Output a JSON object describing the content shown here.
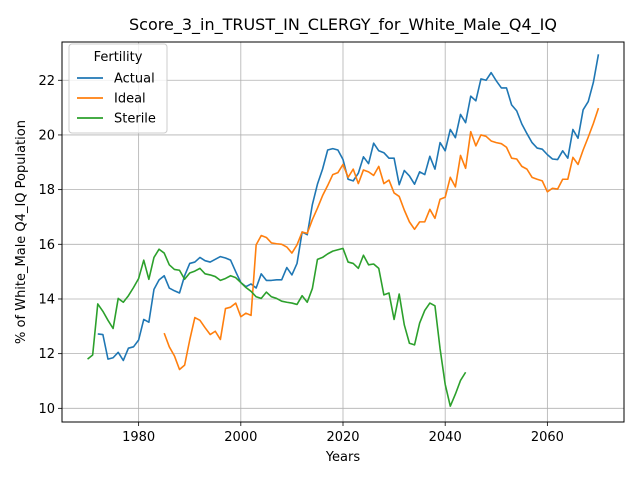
{
  "chart_data": {
    "type": "line",
    "title": "Score_3_in_TRUST_IN_CLERGY_for_White_Male_Q4_IQ",
    "xlabel": "Years",
    "ylabel": "% of White_Male Q4_IQ Population",
    "xlim": [
      1965,
      2075
    ],
    "ylim": [
      9.5,
      23.4
    ],
    "xticks": [
      1980,
      2000,
      2020,
      2040,
      2060
    ],
    "yticks": [
      10,
      12,
      14,
      16,
      18,
      20,
      22
    ],
    "grid": true,
    "legend": {
      "title": "Fertility",
      "placement": "top-left",
      "entries": [
        "Actual",
        "Ideal",
        "Sterile"
      ]
    },
    "series": [
      {
        "name": "Actual",
        "color": "#1f77b4",
        "points": [
          [
            1972,
            12.72
          ],
          [
            1973,
            12.7
          ],
          [
            1974,
            11.8
          ],
          [
            1975,
            11.85
          ],
          [
            1976,
            12.05
          ],
          [
            1977,
            11.75
          ],
          [
            1978,
            12.2
          ],
          [
            1979,
            12.25
          ],
          [
            1980,
            12.5
          ],
          [
            1981,
            13.25
          ],
          [
            1982,
            13.15
          ],
          [
            1983,
            14.35
          ],
          [
            1984,
            14.7
          ],
          [
            1985,
            14.85
          ],
          [
            1986,
            14.4
          ],
          [
            1987,
            14.3
          ],
          [
            1988,
            14.22
          ],
          [
            1989,
            14.85
          ],
          [
            1990,
            15.3
          ],
          [
            1991,
            15.35
          ],
          [
            1992,
            15.52
          ],
          [
            1993,
            15.4
          ],
          [
            1994,
            15.35
          ],
          [
            1995,
            15.45
          ],
          [
            1996,
            15.55
          ],
          [
            1997,
            15.5
          ],
          [
            1998,
            15.42
          ],
          [
            1999,
            15.0
          ],
          [
            2000,
            14.6
          ],
          [
            2001,
            14.45
          ],
          [
            2002,
            14.55
          ],
          [
            2003,
            14.4
          ],
          [
            2004,
            14.92
          ],
          [
            2005,
            14.68
          ],
          [
            2006,
            14.68
          ],
          [
            2007,
            14.7
          ],
          [
            2008,
            14.7
          ],
          [
            2009,
            15.15
          ],
          [
            2010,
            14.88
          ],
          [
            2011,
            15.3
          ],
          [
            2012,
            16.45
          ],
          [
            2013,
            16.35
          ],
          [
            2014,
            17.45
          ],
          [
            2015,
            18.2
          ],
          [
            2016,
            18.75
          ],
          [
            2017,
            19.45
          ],
          [
            2018,
            19.5
          ],
          [
            2019,
            19.45
          ],
          [
            2020,
            19.1
          ],
          [
            2021,
            18.38
          ],
          [
            2022,
            18.32
          ],
          [
            2023,
            18.6
          ],
          [
            2024,
            19.2
          ],
          [
            2025,
            18.95
          ],
          [
            2026,
            19.7
          ],
          [
            2027,
            19.42
          ],
          [
            2028,
            19.35
          ],
          [
            2029,
            19.15
          ],
          [
            2030,
            19.15
          ],
          [
            2031,
            18.18
          ],
          [
            2032,
            18.7
          ],
          [
            2033,
            18.5
          ],
          [
            2034,
            18.2
          ],
          [
            2035,
            18.65
          ],
          [
            2036,
            18.55
          ],
          [
            2037,
            19.22
          ],
          [
            2038,
            18.75
          ],
          [
            2039,
            19.72
          ],
          [
            2040,
            19.42
          ],
          [
            2041,
            20.2
          ],
          [
            2042,
            19.9
          ],
          [
            2043,
            20.75
          ],
          [
            2044,
            20.45
          ],
          [
            2045,
            21.42
          ],
          [
            2046,
            21.25
          ],
          [
            2047,
            22.05
          ],
          [
            2048,
            22.0
          ],
          [
            2049,
            22.28
          ],
          [
            2050,
            21.98
          ],
          [
            2051,
            21.72
          ],
          [
            2052,
            21.72
          ],
          [
            2053,
            21.1
          ],
          [
            2054,
            20.88
          ],
          [
            2055,
            20.4
          ],
          [
            2056,
            20.05
          ],
          [
            2057,
            19.72
          ],
          [
            2058,
            19.52
          ],
          [
            2059,
            19.48
          ],
          [
            2060,
            19.28
          ],
          [
            2061,
            19.12
          ],
          [
            2062,
            19.1
          ],
          [
            2063,
            19.42
          ],
          [
            2064,
            19.15
          ],
          [
            2065,
            20.2
          ],
          [
            2066,
            19.88
          ],
          [
            2067,
            20.92
          ],
          [
            2068,
            21.22
          ],
          [
            2069,
            21.92
          ],
          [
            2070,
            22.95
          ]
        ]
      },
      {
        "name": "Ideal",
        "color": "#ff7f0e",
        "points": [
          [
            1985,
            12.75
          ],
          [
            1986,
            12.25
          ],
          [
            1987,
            11.92
          ],
          [
            1988,
            11.42
          ],
          [
            1989,
            11.58
          ],
          [
            1990,
            12.5
          ],
          [
            1991,
            13.32
          ],
          [
            1992,
            13.22
          ],
          [
            1993,
            12.95
          ],
          [
            1994,
            12.7
          ],
          [
            1995,
            12.82
          ],
          [
            1996,
            12.52
          ],
          [
            1997,
            13.65
          ],
          [
            1998,
            13.7
          ],
          [
            1999,
            13.85
          ],
          [
            2000,
            13.35
          ],
          [
            2001,
            13.48
          ],
          [
            2002,
            13.4
          ],
          [
            2003,
            15.98
          ],
          [
            2004,
            16.32
          ],
          [
            2005,
            16.25
          ],
          [
            2006,
            16.05
          ],
          [
            2007,
            16.02
          ],
          [
            2008,
            16.0
          ],
          [
            2009,
            15.9
          ],
          [
            2010,
            15.68
          ],
          [
            2011,
            15.98
          ],
          [
            2012,
            16.45
          ],
          [
            2013,
            16.4
          ],
          [
            2014,
            16.9
          ],
          [
            2015,
            17.32
          ],
          [
            2016,
            17.78
          ],
          [
            2017,
            18.15
          ],
          [
            2018,
            18.55
          ],
          [
            2019,
            18.62
          ],
          [
            2020,
            18.92
          ],
          [
            2021,
            18.45
          ],
          [
            2022,
            18.75
          ],
          [
            2023,
            18.22
          ],
          [
            2024,
            18.72
          ],
          [
            2025,
            18.65
          ],
          [
            2026,
            18.52
          ],
          [
            2027,
            18.85
          ],
          [
            2028,
            18.22
          ],
          [
            2029,
            18.35
          ],
          [
            2030,
            17.88
          ],
          [
            2031,
            17.75
          ],
          [
            2032,
            17.25
          ],
          [
            2033,
            16.82
          ],
          [
            2034,
            16.55
          ],
          [
            2035,
            16.82
          ],
          [
            2036,
            16.82
          ],
          [
            2037,
            17.28
          ],
          [
            2038,
            16.95
          ],
          [
            2039,
            17.65
          ],
          [
            2040,
            17.72
          ],
          [
            2041,
            18.45
          ],
          [
            2042,
            18.1
          ],
          [
            2043,
            19.25
          ],
          [
            2044,
            18.78
          ],
          [
            2045,
            20.12
          ],
          [
            2046,
            19.6
          ],
          [
            2047,
            20.0
          ],
          [
            2048,
            19.95
          ],
          [
            2049,
            19.78
          ],
          [
            2050,
            19.72
          ],
          [
            2051,
            19.68
          ],
          [
            2052,
            19.55
          ],
          [
            2053,
            19.15
          ],
          [
            2054,
            19.12
          ],
          [
            2055,
            18.85
          ],
          [
            2056,
            18.75
          ],
          [
            2057,
            18.45
          ],
          [
            2058,
            18.38
          ],
          [
            2059,
            18.32
          ],
          [
            2060,
            17.92
          ],
          [
            2061,
            18.05
          ],
          [
            2062,
            18.02
          ],
          [
            2063,
            18.38
          ],
          [
            2064,
            18.38
          ],
          [
            2065,
            19.18
          ],
          [
            2066,
            18.92
          ],
          [
            2067,
            19.45
          ],
          [
            2068,
            19.92
          ],
          [
            2069,
            20.42
          ],
          [
            2070,
            20.98
          ]
        ]
      },
      {
        "name": "Sterile",
        "color": "#2ca02c",
        "points": [
          [
            1970,
            11.8
          ],
          [
            1971,
            11.95
          ],
          [
            1972,
            13.82
          ],
          [
            1973,
            13.55
          ],
          [
            1974,
            13.22
          ],
          [
            1975,
            12.92
          ],
          [
            1976,
            14.02
          ],
          [
            1977,
            13.88
          ],
          [
            1978,
            14.12
          ],
          [
            1979,
            14.42
          ],
          [
            1980,
            14.75
          ],
          [
            1981,
            15.42
          ],
          [
            1982,
            14.72
          ],
          [
            1983,
            15.52
          ],
          [
            1984,
            15.82
          ],
          [
            1985,
            15.68
          ],
          [
            1986,
            15.25
          ],
          [
            1987,
            15.08
          ],
          [
            1988,
            15.05
          ],
          [
            1989,
            14.72
          ],
          [
            1990,
            14.95
          ],
          [
            1991,
            15.02
          ],
          [
            1992,
            15.12
          ],
          [
            1993,
            14.92
          ],
          [
            1994,
            14.88
          ],
          [
            1995,
            14.82
          ],
          [
            1996,
            14.68
          ],
          [
            1997,
            14.75
          ],
          [
            1998,
            14.85
          ],
          [
            1999,
            14.78
          ],
          [
            2000,
            14.6
          ],
          [
            2001,
            14.42
          ],
          [
            2002,
            14.28
          ],
          [
            2003,
            14.08
          ],
          [
            2004,
            14.02
          ],
          [
            2005,
            14.25
          ],
          [
            2006,
            14.08
          ],
          [
            2007,
            14.02
          ],
          [
            2008,
            13.92
          ],
          [
            2009,
            13.88
          ],
          [
            2010,
            13.85
          ],
          [
            2011,
            13.8
          ],
          [
            2012,
            14.12
          ],
          [
            2013,
            13.88
          ],
          [
            2014,
            14.38
          ],
          [
            2015,
            15.45
          ],
          [
            2016,
            15.52
          ],
          [
            2017,
            15.65
          ],
          [
            2018,
            15.75
          ],
          [
            2019,
            15.8
          ],
          [
            2020,
            15.85
          ],
          [
            2021,
            15.35
          ],
          [
            2022,
            15.3
          ],
          [
            2023,
            15.12
          ],
          [
            2024,
            15.6
          ],
          [
            2025,
            15.25
          ],
          [
            2026,
            15.28
          ],
          [
            2027,
            15.12
          ],
          [
            2028,
            14.15
          ],
          [
            2029,
            14.22
          ],
          [
            2030,
            13.25
          ],
          [
            2031,
            14.18
          ],
          [
            2032,
            13.05
          ],
          [
            2033,
            12.38
          ],
          [
            2034,
            12.32
          ],
          [
            2035,
            13.12
          ],
          [
            2036,
            13.58
          ],
          [
            2037,
            13.85
          ],
          [
            2038,
            13.75
          ],
          [
            2039,
            12.18
          ],
          [
            2040,
            10.88
          ],
          [
            2041,
            10.08
          ],
          [
            2042,
            10.52
          ],
          [
            2043,
            11.02
          ],
          [
            2044,
            11.32
          ]
        ]
      }
    ]
  }
}
